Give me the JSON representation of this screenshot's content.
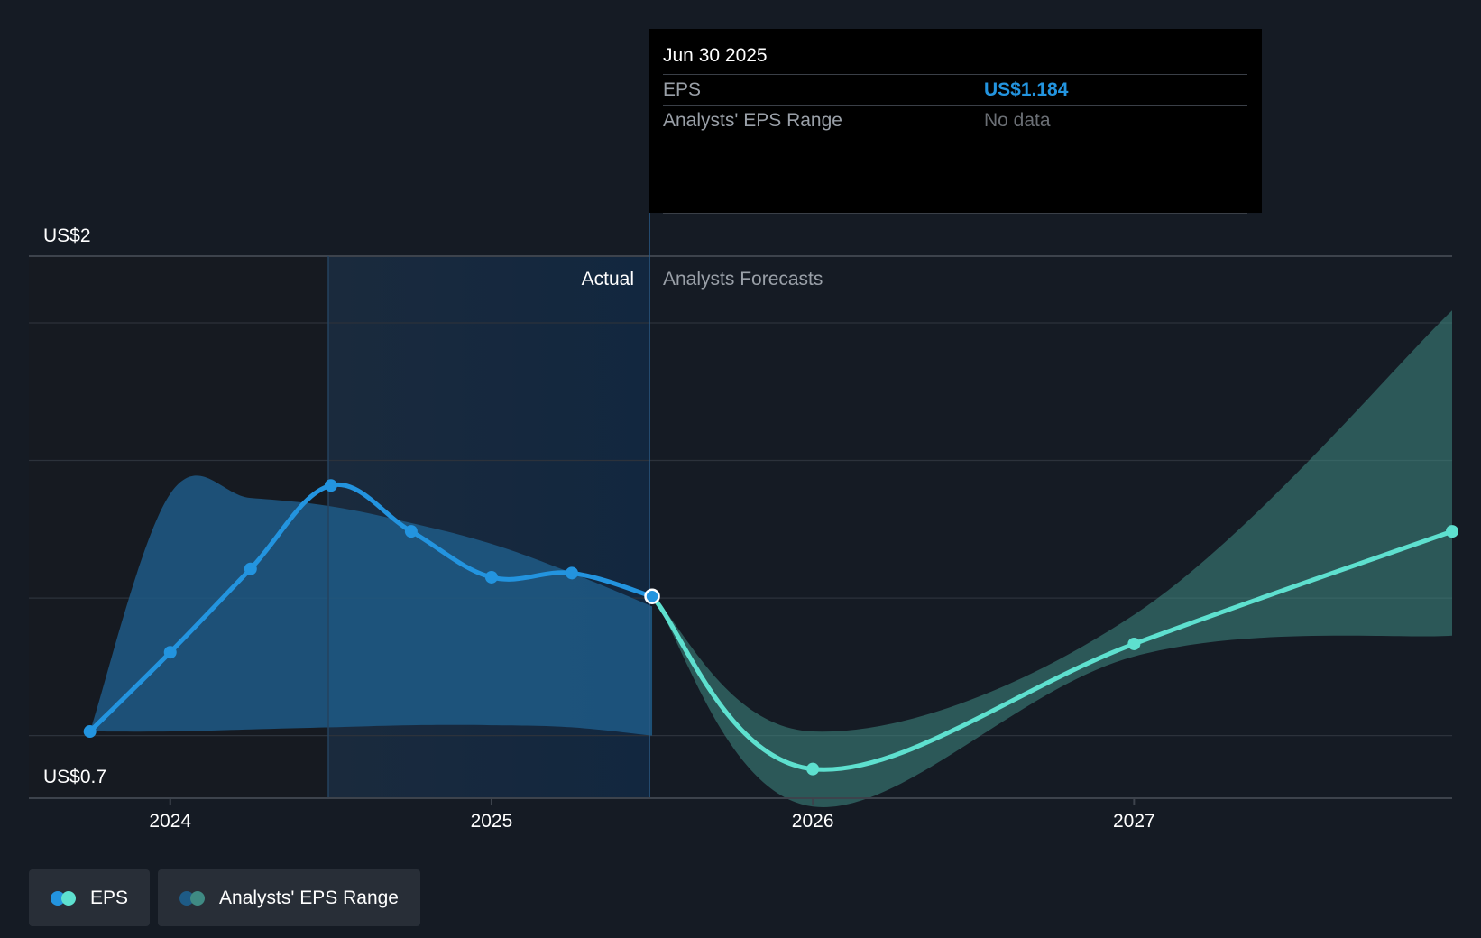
{
  "tooltip": {
    "date": "Jun 30 2025",
    "eps_label": "EPS",
    "eps_value": "US$1.184",
    "range_label": "Analysts' EPS Range",
    "range_value": "No data"
  },
  "labels": {
    "actual": "Actual",
    "forecast": "Analysts Forecasts"
  },
  "legend": {
    "eps": "EPS",
    "range": "Analysts' EPS Range",
    "colors": {
      "actual": "#2394df",
      "forecast": "#5ee0cf",
      "range_actual": "#1e5b86",
      "range_forecast": "#3f8a83"
    }
  },
  "chart_data": {
    "type": "line",
    "title": "",
    "xlabel": "",
    "ylabel": "",
    "ylim": [
      0.7,
      2.0
    ],
    "y_tick_labels": [
      "US$2",
      "US$0.7"
    ],
    "x_ticks": [
      {
        "label": "2024",
        "value": 2024.0
      },
      {
        "label": "2025",
        "value": 2025.0
      },
      {
        "label": "2026",
        "value": 2026.0
      },
      {
        "label": "2027",
        "value": 2027.0
      }
    ],
    "xlim": [
      2023.56,
      2027.99
    ],
    "actual_start": 2024.5,
    "split_date": 2025.5,
    "gridlines": [
      2.0,
      1.84,
      1.51,
      1.18,
      0.85,
      0.7
    ],
    "series": [
      {
        "name": "EPS (actual)",
        "x": [
          2023.75,
          2024.0,
          2024.25,
          2024.5,
          2024.75,
          2025.0,
          2025.25,
          2025.5
        ],
        "values": [
          0.86,
          1.05,
          1.25,
          1.45,
          1.34,
          1.23,
          1.24,
          1.184
        ]
      },
      {
        "name": "EPS (forecast)",
        "x": [
          2025.5,
          2026.0,
          2027.0,
          2027.99
        ],
        "values": [
          1.184,
          0.77,
          1.07,
          1.34
        ]
      }
    ],
    "range_actual": {
      "x": [
        2023.75,
        2024.0,
        2024.25,
        2024.5,
        2024.75,
        2025.0,
        2025.25,
        2025.5
      ],
      "low": [
        0.86,
        0.86,
        0.865,
        0.87,
        0.875,
        0.875,
        0.87,
        0.85
      ],
      "high": [
        0.86,
        1.43,
        1.42,
        1.4,
        1.36,
        1.31,
        1.24,
        1.16
      ]
    },
    "range_forecast": {
      "x": [
        2025.5,
        2026.0,
        2027.0,
        2027.99
      ],
      "low": [
        1.184,
        0.68,
        1.04,
        1.09
      ],
      "high": [
        1.184,
        0.86,
        1.14,
        1.87
      ]
    },
    "highlight": {
      "x": 2025.5,
      "value": 1.184
    }
  }
}
